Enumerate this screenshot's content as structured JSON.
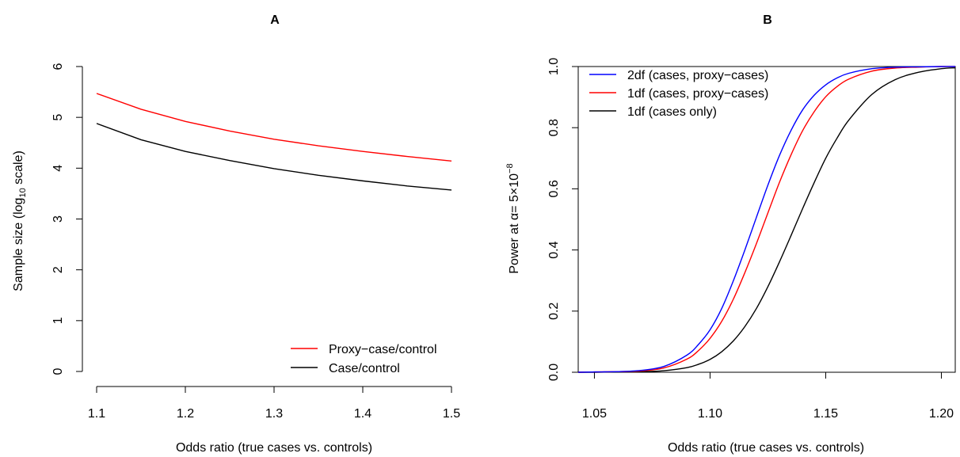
{
  "chart_data": [
    {
      "panel": "A",
      "type": "line",
      "title": "A",
      "xlabel": "Odds ratio (true cases vs. controls)",
      "ylabel_prefix": "Sample size (log",
      "ylabel_sub": "10",
      "ylabel_suffix": " scale)",
      "xlim": [
        1.1,
        1.5
      ],
      "ylim": [
        0,
        6
      ],
      "xticks": [
        "1.1",
        "1.2",
        "1.3",
        "1.4",
        "1.5"
      ],
      "yticks": [
        "0",
        "1",
        "2",
        "3",
        "4",
        "5",
        "6"
      ],
      "legend_position": "bottom-right",
      "x": [
        1.1,
        1.15,
        1.2,
        1.25,
        1.3,
        1.35,
        1.4,
        1.45,
        1.5
      ],
      "series": [
        {
          "name": "Proxy−case/control",
          "color": "#ff0000",
          "values": [
            5.47,
            5.16,
            4.92,
            4.73,
            4.57,
            4.44,
            4.33,
            4.23,
            4.14
          ]
        },
        {
          "name": "Case/control",
          "color": "#000000",
          "values": [
            4.88,
            4.56,
            4.33,
            4.15,
            3.99,
            3.86,
            3.75,
            3.65,
            3.57
          ]
        }
      ]
    },
    {
      "panel": "B",
      "type": "line",
      "title": "B",
      "xlabel": "Odds ratio (true cases vs. controls)",
      "ylabel_prefix": "Power at α= 5×10",
      "ylabel_sup": "−8",
      "xlim": [
        1.043,
        1.206
      ],
      "ylim": [
        0,
        1
      ],
      "xticks": [
        "1.05",
        "1.10",
        "1.15",
        "1.20"
      ],
      "yticks": [
        "0.0",
        "0.2",
        "0.4",
        "0.6",
        "0.8",
        "1.0"
      ],
      "legend_position": "top-left",
      "x": [
        1.043,
        1.05,
        1.06,
        1.07,
        1.08,
        1.09,
        1.095,
        1.1,
        1.105,
        1.11,
        1.115,
        1.12,
        1.125,
        1.13,
        1.135,
        1.14,
        1.145,
        1.15,
        1.155,
        1.16,
        1.17,
        1.18,
        1.19,
        1.2,
        1.206
      ],
      "series": [
        {
          "name": "2df (cases, proxy−cases)",
          "color": "#0000ff",
          "values": [
            0.0,
            0.001,
            0.002,
            0.006,
            0.019,
            0.056,
            0.091,
            0.139,
            0.208,
            0.298,
            0.399,
            0.506,
            0.612,
            0.709,
            0.791,
            0.858,
            0.906,
            0.94,
            0.963,
            0.978,
            0.993,
            0.998,
            0.999,
            1.0,
            1.0
          ]
        },
        {
          "name": "1df (cases, proxy−cases)",
          "color": "#ff0000",
          "values": [
            0.0,
            0.001,
            0.002,
            0.004,
            0.014,
            0.043,
            0.071,
            0.111,
            0.166,
            0.238,
            0.325,
            0.42,
            0.521,
            0.621,
            0.711,
            0.79,
            0.852,
            0.901,
            0.935,
            0.959,
            0.985,
            0.995,
            0.998,
            1.0,
            1.0
          ]
        },
        {
          "name": "1df (cases only)",
          "color": "#000000",
          "values": [
            0.0,
            0.0,
            0.001,
            0.002,
            0.005,
            0.015,
            0.026,
            0.042,
            0.067,
            0.102,
            0.149,
            0.208,
            0.28,
            0.361,
            0.447,
            0.535,
            0.62,
            0.7,
            0.767,
            0.825,
            0.909,
            0.957,
            0.981,
            0.993,
            0.996
          ]
        }
      ]
    }
  ]
}
